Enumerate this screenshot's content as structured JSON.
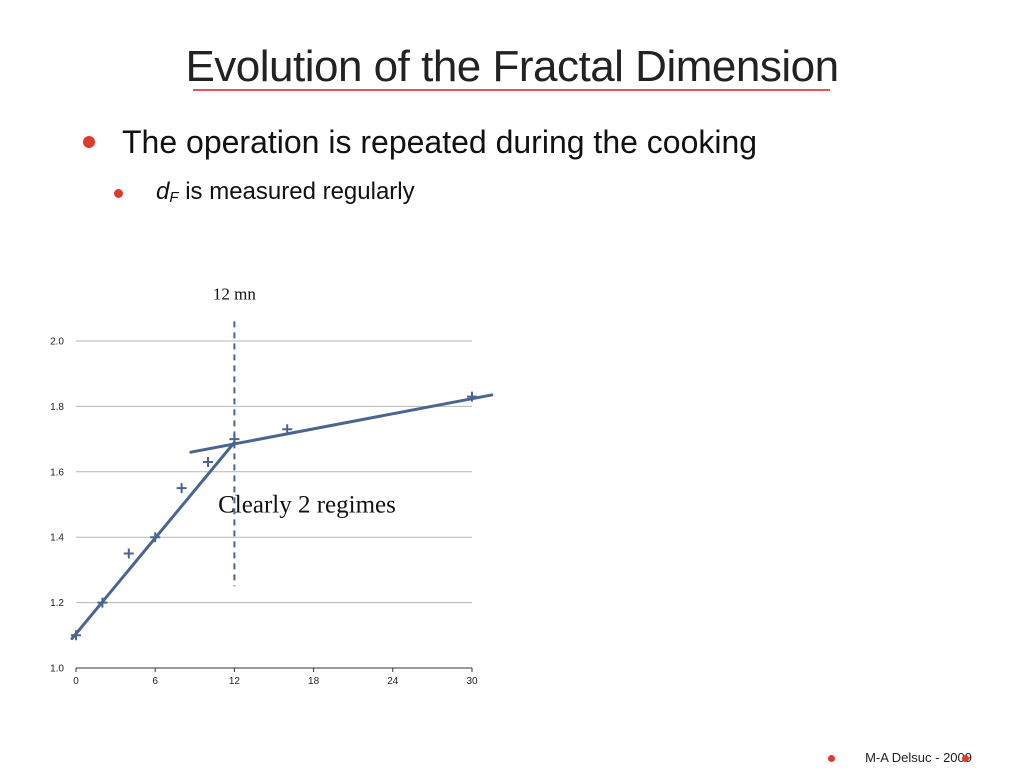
{
  "slide": {
    "title": "Evolution of the Fractal Dimension",
    "bullet1": "The operation is repeated during the cooking",
    "bullet2_symbol": "d",
    "bullet2_subscript": "F",
    "bullet2_text": " is measured regularly",
    "footer": "M-A Delsuc - 2009"
  },
  "colors": {
    "accent": "#e03a2c",
    "series": "#4a6592",
    "grid": "#b5b5b5"
  },
  "chart_data": {
    "type": "scatter",
    "title": "",
    "xlabel": "",
    "ylabel": "",
    "xlim": [
      0,
      30
    ],
    "ylim": [
      1.0,
      2.0
    ],
    "x_ticks": [
      0,
      6,
      12,
      18,
      24,
      30
    ],
    "y_ticks": [
      1.0,
      1.2,
      1.4,
      1.6,
      1.8,
      2.0
    ],
    "y_tick_labels": [
      "1.0",
      "1.2",
      "1.4",
      "1.6",
      "1.8",
      "2.0"
    ],
    "grid": "horizontal",
    "legend": "none",
    "points": [
      {
        "x": 0,
        "y": 1.1
      },
      {
        "x": 2,
        "y": 1.2
      },
      {
        "x": 4,
        "y": 1.35
      },
      {
        "x": 6,
        "y": 1.4
      },
      {
        "x": 8,
        "y": 1.55
      },
      {
        "x": 10,
        "y": 1.63
      },
      {
        "x": 12,
        "y": 1.7
      },
      {
        "x": 16,
        "y": 1.73
      },
      {
        "x": 30,
        "y": 1.83
      }
    ],
    "fit_lines": [
      {
        "x1": -0.3,
        "y1": 1.09,
        "x2": 12,
        "y2": 1.69
      },
      {
        "x1": 8.7,
        "y1": 1.66,
        "x2": 31.5,
        "y2": 1.835
      }
    ],
    "vertical_marker": {
      "x": 12,
      "y_from": 1.25,
      "y_to": 2.06,
      "label": "12 mn"
    },
    "annotation": {
      "text": "Clearly 2 regimes",
      "x": 17.5,
      "y": 1.475
    }
  }
}
